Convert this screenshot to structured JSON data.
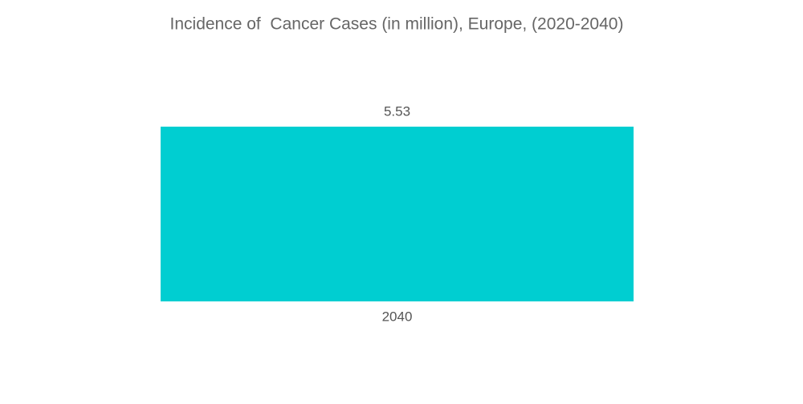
{
  "chart_data": {
    "type": "bar",
    "title": "Incidence of  Cancer Cases (in million), Europe, (2020-2040)",
    "categories": [
      "2040"
    ],
    "values": [
      5.53
    ],
    "color": "#00ced1"
  }
}
